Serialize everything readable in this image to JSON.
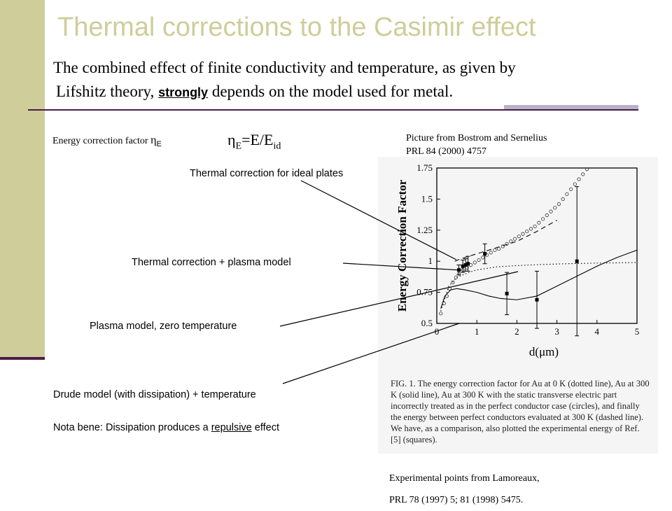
{
  "slide": {
    "title": "Thermal corrections to the Casimir effect",
    "subtitle_line1": "The combined effect of finite conductivity and temperature, as given by",
    "subtitle_line2_pre": "Lifshitz theory,",
    "subtitle_strong": "strongly",
    "subtitle_line2_post": "depends on the model used for metal."
  },
  "energy_factor": {
    "label": "Energy correction factor",
    "eta_symbol": "η",
    "eta_sub": "E",
    "equation_lhs": "η",
    "equation_lhs_sub": "E",
    "equation_mid": "=E/E",
    "equation_rhs_sub": "id"
  },
  "source": {
    "line1": "Picture from Bostrom and Sernelius",
    "line2": "PRL 84 (2000) 4757"
  },
  "annotations": {
    "ideal": "Thermal correction for ideal plates",
    "plasma_thermal": "Thermal correction + plasma model",
    "plasma_zero": "Plasma model, zero temperature",
    "drude": "Drude model (with dissipation) + temperature",
    "nota_pre": "Nota bene: Dissipation produces a",
    "nota_underlined": "repulsive",
    "nota_post": "effect"
  },
  "experimental": {
    "line1": "Experimental points from Lamoreaux,",
    "line2": "PRL 78 (1997) 5; 81 (1998) 5475."
  },
  "figure": {
    "ylabel": "Energy Correction Factor",
    "xlabel": "d(μm)",
    "caption": "FIG. 1.   The energy correction factor for Au at 0 K (dotted line), Au at 300 K (solid line), Au at 300 K with the static transverse electric part incorrectly treated as in the perfect conductor case (circles), and finally the energy between perfect conductors evaluated at 300 K (dashed line). We have, as a comparison, also plotted the experimental energy of Ref. [5] (squares)."
  },
  "chart_data": {
    "type": "line",
    "xlabel": "d(μm)",
    "ylabel": "Energy Correction Factor",
    "xlim": [
      0,
      5
    ],
    "ylim": [
      0.5,
      1.75
    ],
    "x_ticks": [
      "0",
      "1",
      "2",
      "3",
      "4",
      "5"
    ],
    "y_ticks": [
      "0.5",
      "0.75",
      "1",
      "1.25",
      "1.5",
      "1.75"
    ],
    "series": [
      {
        "style": "dotted",
        "x": [
          0.1,
          0.3,
          0.5,
          0.8,
          1.0,
          1.5,
          2.0,
          2.5,
          3.0,
          3.5,
          4.0,
          4.5,
          5.0
        ],
        "y": [
          0.6,
          0.8,
          0.87,
          0.91,
          0.93,
          0.955,
          0.965,
          0.972,
          0.978,
          0.982,
          0.985,
          0.987,
          0.99
        ]
      },
      {
        "style": "solid",
        "x": [
          0.1,
          0.2,
          0.35,
          0.5,
          0.7,
          1.0,
          1.3,
          1.6,
          2.0,
          2.5,
          3.0,
          3.5,
          4.0,
          4.5,
          5.0
        ],
        "y": [
          0.62,
          0.72,
          0.77,
          0.78,
          0.77,
          0.75,
          0.72,
          0.7,
          0.69,
          0.72,
          0.8,
          0.88,
          0.96,
          1.03,
          1.09
        ]
      },
      {
        "style": "dashed",
        "x": [
          0.45,
          0.6,
          0.8,
          1.0,
          1.3,
          1.6,
          2.0,
          2.5,
          3.0
        ],
        "y": [
          1.0,
          1.02,
          1.04,
          1.06,
          1.09,
          1.12,
          1.16,
          1.24,
          1.33
        ]
      },
      {
        "style": "circles",
        "x": [
          0.1,
          0.18,
          0.25,
          0.32,
          0.4,
          0.48,
          0.55,
          0.65,
          0.75,
          0.85,
          0.95,
          1.05,
          1.15,
          1.25,
          1.35,
          1.45,
          1.55,
          1.65,
          1.75,
          1.85,
          1.95,
          2.05,
          2.15,
          2.25,
          2.35,
          2.45,
          2.55,
          2.65,
          2.75,
          2.85,
          2.95,
          3.05,
          3.15,
          3.25,
          3.35,
          3.45,
          3.55,
          3.65,
          3.75
        ],
        "y": [
          0.58,
          0.66,
          0.72,
          0.78,
          0.83,
          0.87,
          0.9,
          0.93,
          0.95,
          0.97,
          0.99,
          1.01,
          1.03,
          1.05,
          1.07,
          1.09,
          1.1,
          1.12,
          1.14,
          1.16,
          1.18,
          1.2,
          1.22,
          1.24,
          1.26,
          1.28,
          1.31,
          1.34,
          1.37,
          1.4,
          1.43,
          1.46,
          1.5,
          1.54,
          1.58,
          1.62,
          1.66,
          1.7,
          1.74
        ]
      },
      {
        "style": "squares",
        "x": [
          0.55,
          0.65,
          0.72,
          0.78,
          1.2,
          1.75,
          2.5,
          3.5
        ],
        "y": [
          0.93,
          0.96,
          0.97,
          0.98,
          1.06,
          0.74,
          0.69,
          1.0
        ],
        "err": [
          0.04,
          0.05,
          0.05,
          0.06,
          0.08,
          0.17,
          0.23,
          0.6
        ]
      }
    ]
  }
}
